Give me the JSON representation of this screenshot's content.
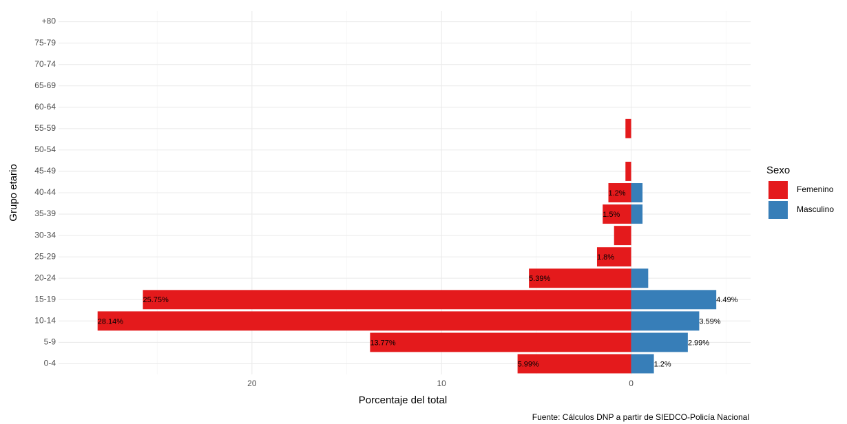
{
  "chart_data": {
    "type": "bar",
    "orientation": "horizontal",
    "x_label": "Porcentaje del total",
    "y_label": "Grupo etario",
    "caption": "Fuente: Cálculos DNP a partir de SIEDCO-Policía Nacional",
    "legend_title": "Sexo",
    "categories": [
      "0-4",
      "5-9",
      "10-14",
      "15-19",
      "20-24",
      "25-29",
      "30-34",
      "35-39",
      "40-44",
      "45-49",
      "50-54",
      "55-59",
      "60-64",
      "65-69",
      "70-74",
      "75-79",
      "+80"
    ],
    "series": [
      {
        "name": "Femenino",
        "color": "#e41a1c",
        "values": [
          -5.99,
          -13.77,
          -28.14,
          -25.75,
          -5.39,
          -1.8,
          -0.9,
          -1.5,
          -1.2,
          -0.3,
          0,
          -0.3,
          0,
          0,
          0,
          0,
          0
        ],
        "value_labels": [
          "5.99%",
          "13.77%",
          "28.14%",
          "25.75%",
          "5.39%",
          "1.8%",
          null,
          "1.5%",
          "1.2%",
          null,
          null,
          null,
          null,
          null,
          null,
          null,
          null
        ]
      },
      {
        "name": "Masculino",
        "color": "#377eb8",
        "values": [
          1.2,
          2.99,
          3.59,
          4.49,
          0.9,
          0,
          0,
          0.6,
          0.6,
          0,
          0,
          0,
          0,
          0,
          0,
          0,
          0
        ],
        "value_labels": [
          "1.2%",
          "2.99%",
          "3.59%",
          "4.49%",
          null,
          null,
          null,
          null,
          null,
          null,
          null,
          null,
          null,
          null,
          null,
          null,
          null
        ]
      }
    ],
    "xlim": [
      -30.2,
      6.3
    ],
    "xticks": [
      {
        "value": -20,
        "label": "20"
      },
      {
        "value": -10,
        "label": "10"
      },
      0
    ],
    "xminor": [
      -25,
      -15,
      -5,
      5
    ],
    "grid": true
  }
}
